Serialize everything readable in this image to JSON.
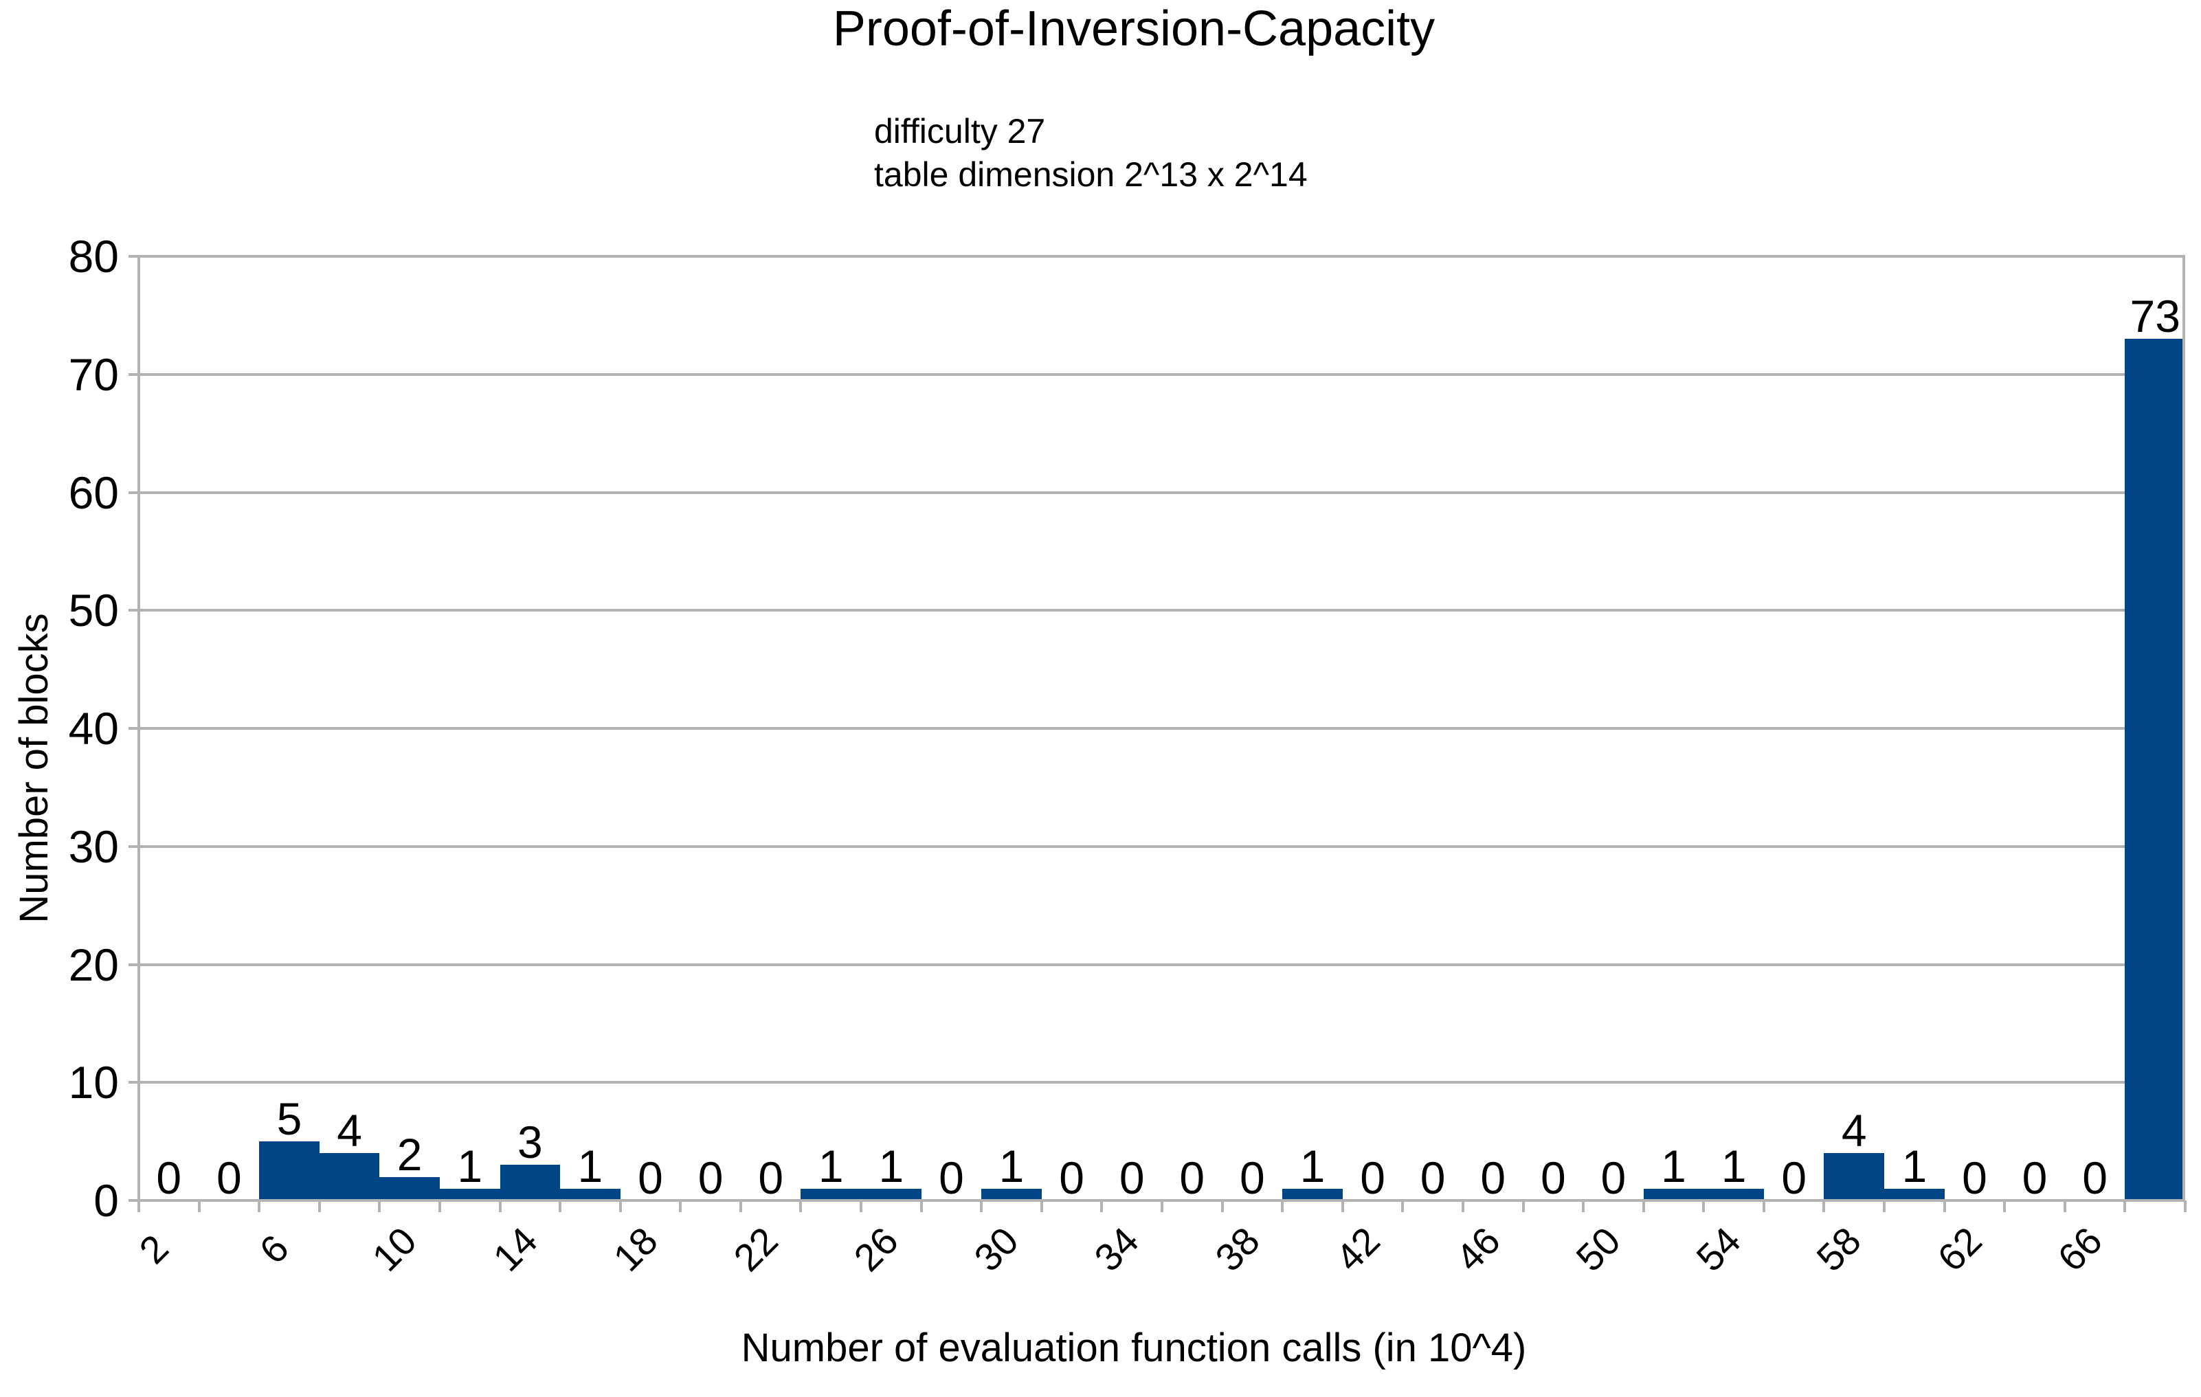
{
  "chart": {
    "title": "Proof-of-Inversion-Capacity",
    "annotation_lines": [
      "difficulty 27",
      "table dimension 2^13 x 2^14"
    ],
    "x_axis_title": "Number of evaluation function calls (in 10^4)",
    "y_axis_title": "Number of blocks",
    "colors": {
      "bar": "#004586",
      "grid": "#b3b3b3",
      "text": "#000000",
      "background": "#ffffff"
    }
  },
  "chart_data": {
    "type": "bar",
    "title": "Proof-of-Inversion-Capacity",
    "annotation": [
      "difficulty 27",
      "table dimension 2^13 x 2^14"
    ],
    "xlabel": "Number of evaluation function calls (in 10^4)",
    "ylabel": "Number of blocks",
    "x_range": [
      2,
      70
    ],
    "ylim": [
      0,
      80
    ],
    "bin_width": 2,
    "bin_edges": [
      2,
      4,
      6,
      8,
      10,
      12,
      14,
      16,
      18,
      20,
      22,
      24,
      26,
      28,
      30,
      32,
      34,
      36,
      38,
      40,
      42,
      44,
      46,
      48,
      50,
      52,
      54,
      56,
      58,
      60,
      62,
      64,
      66,
      68,
      70
    ],
    "values": [
      0,
      0,
      5,
      4,
      2,
      1,
      3,
      1,
      0,
      0,
      0,
      1,
      1,
      0,
      1,
      0,
      0,
      0,
      0,
      1,
      0,
      0,
      0,
      0,
      0,
      1,
      1,
      0,
      4,
      1,
      0,
      0,
      0,
      73
    ],
    "bar_value_labels_shown": true,
    "y_ticks": [
      0,
      10,
      20,
      30,
      40,
      50,
      60,
      70,
      80
    ],
    "x_tick_step": 2,
    "x_tick_labels": [
      2,
      6,
      10,
      14,
      18,
      22,
      26,
      30,
      34,
      38,
      42,
      46,
      50,
      54,
      58,
      62,
      66
    ],
    "x_tick_label_rotation_deg": -45,
    "grid": "horizontal",
    "legend": "none"
  }
}
